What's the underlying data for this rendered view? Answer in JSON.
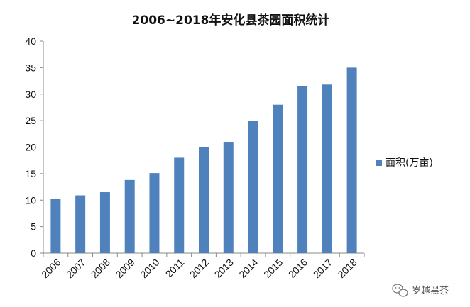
{
  "chart_data": {
    "type": "bar",
    "title": "2006~2018年安化县茶园面积统计",
    "categories": [
      "2006",
      "2007",
      "2008",
      "2009",
      "2010",
      "2011",
      "2012",
      "2013",
      "2014",
      "2015",
      "2016",
      "2017",
      "2018"
    ],
    "series": [
      {
        "name": "面积(万亩)",
        "values": [
          10.3,
          10.9,
          11.5,
          13.8,
          15.1,
          18.0,
          20.0,
          21.0,
          25.0,
          28.0,
          31.5,
          31.8,
          35.0
        ],
        "color": "#4F81BD"
      }
    ],
    "y_ticks": [
      "0",
      "5",
      "10",
      "15",
      "20",
      "25",
      "30",
      "35",
      "40"
    ],
    "ylim": [
      0,
      40
    ],
    "grid": false,
    "legend_position": "right"
  },
  "watermark": {
    "text": "岁越黑茶",
    "icon": "wechat-icon"
  }
}
